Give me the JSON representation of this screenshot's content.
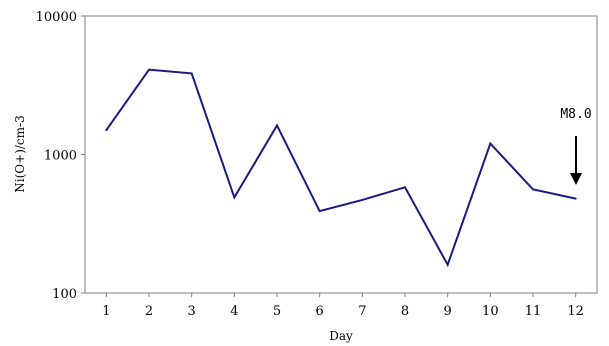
{
  "chart_data": {
    "type": "line",
    "title": "",
    "xlabel": "Day",
    "ylabel": "Ni(O+)/cm-3",
    "yscale": "log",
    "ylim": [
      100,
      10000
    ],
    "xlim": [
      0.5,
      12.5
    ],
    "grid": false,
    "categories": [
      "1",
      "2",
      "3",
      "4",
      "5",
      "6",
      "7",
      "8",
      "9",
      "10",
      "11",
      "12"
    ],
    "y_ticks": [
      "100",
      "1000",
      "10000"
    ],
    "series": [
      {
        "color": "#1a1a80",
        "x": [
          1,
          2,
          3,
          4,
          5,
          6,
          7,
          8,
          9,
          10,
          11,
          12
        ],
        "values": [
          1500,
          4100,
          3850,
          490,
          1620,
          390,
          470,
          580,
          160,
          1200,
          560,
          480
        ]
      }
    ],
    "annotation": {
      "text": "M8.0",
      "x": 11.5
    }
  }
}
